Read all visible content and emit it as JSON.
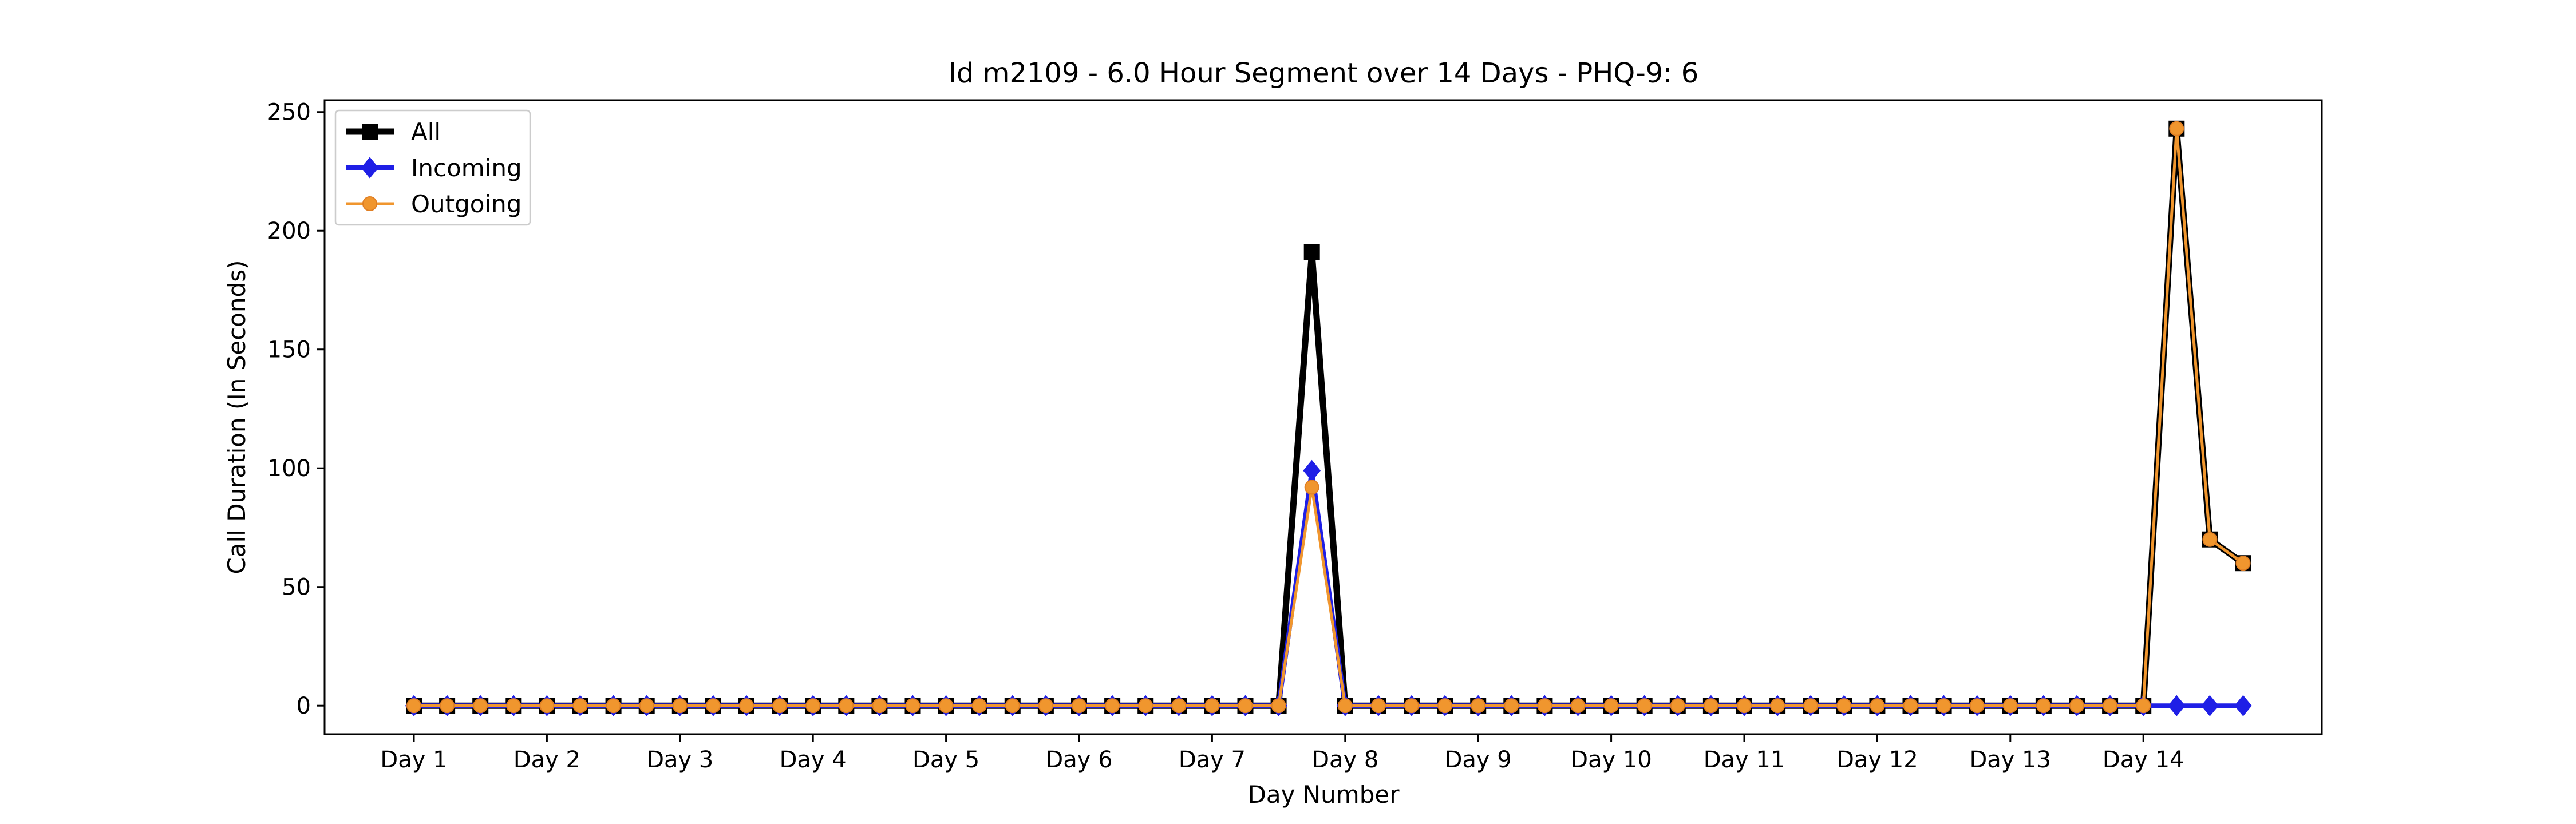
{
  "chart_data": {
    "type": "line",
    "title": "Id m2109 - 6.0 Hour Segment over 14 Days - PHQ-9: 6",
    "xlabel": "Day Number",
    "ylabel": "Call Duration (In Seconds)",
    "ylim": [
      -12,
      255
    ],
    "yticks": [
      0,
      50,
      100,
      150,
      200,
      250
    ],
    "xtick_labels": [
      "Day 1",
      "Day 2",
      "Day 3",
      "Day 4",
      "Day 5",
      "Day 6",
      "Day 7",
      "Day 8",
      "Day 9",
      "Day 10",
      "Day 11",
      "Day 12",
      "Day 13",
      "Day 14"
    ],
    "grid": false,
    "legend_position": "upper-left",
    "series": [
      {
        "name": "All",
        "color": "#000000",
        "marker": "square",
        "values": [
          0,
          0,
          0,
          0,
          0,
          0,
          0,
          0,
          0,
          0,
          0,
          0,
          0,
          0,
          0,
          0,
          0,
          0,
          0,
          0,
          0,
          0,
          0,
          0,
          0,
          0,
          0,
          191,
          0,
          0,
          0,
          0,
          0,
          0,
          0,
          0,
          0,
          0,
          0,
          0,
          0,
          0,
          0,
          0,
          0,
          0,
          0,
          0,
          0,
          0,
          0,
          0,
          0,
          243,
          70,
          60
        ]
      },
      {
        "name": "Incoming",
        "color": "#1f1fe6",
        "marker": "diamond",
        "values": [
          0,
          0,
          0,
          0,
          0,
          0,
          0,
          0,
          0,
          0,
          0,
          0,
          0,
          0,
          0,
          0,
          0,
          0,
          0,
          0,
          0,
          0,
          0,
          0,
          0,
          0,
          0,
          99,
          0,
          0,
          0,
          0,
          0,
          0,
          0,
          0,
          0,
          0,
          0,
          0,
          0,
          0,
          0,
          0,
          0,
          0,
          0,
          0,
          0,
          0,
          0,
          0,
          0,
          0,
          0,
          0
        ]
      },
      {
        "name": "Outgoing",
        "color": "#f0962e",
        "marker": "circle",
        "values": [
          0,
          0,
          0,
          0,
          0,
          0,
          0,
          0,
          0,
          0,
          0,
          0,
          0,
          0,
          0,
          0,
          0,
          0,
          0,
          0,
          0,
          0,
          0,
          0,
          0,
          0,
          0,
          92,
          0,
          0,
          0,
          0,
          0,
          0,
          0,
          0,
          0,
          0,
          0,
          0,
          0,
          0,
          0,
          0,
          0,
          0,
          0,
          0,
          0,
          0,
          0,
          0,
          0,
          243,
          70,
          60
        ]
      }
    ]
  }
}
